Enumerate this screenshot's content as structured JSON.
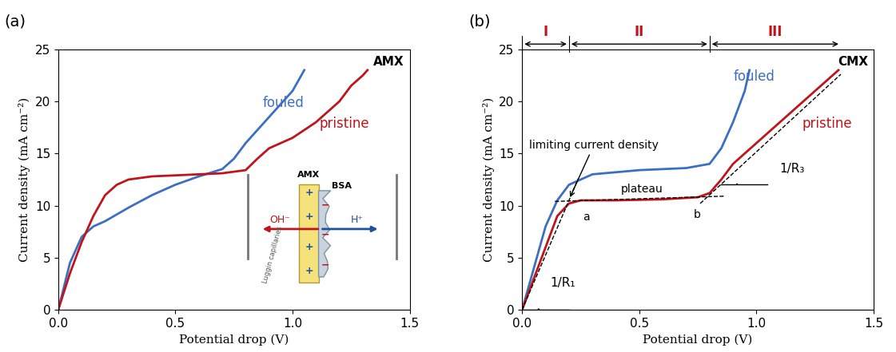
{
  "chart_data": [
    {
      "type": "line",
      "panel": "(a)",
      "title": "AMX",
      "x_label": "Potential drop (V)",
      "y_label": "Current density (mA cm⁻²)",
      "xlim": [
        0,
        1.5
      ],
      "ylim": [
        0,
        25
      ],
      "xticks": [
        {
          "value": 0,
          "label": "0.0"
        },
        {
          "value": 0.5,
          "label": "0.5"
        },
        {
          "value": 1,
          "label": "1.0"
        },
        {
          "value": 1.5,
          "label": "1.5"
        }
      ],
      "yticks": [
        0,
        5,
        10,
        15,
        20,
        25
      ],
      "series": [
        {
          "name": "fouled",
          "color": "#3b6fc4",
          "label_x": 0.96,
          "label_y": 19.5,
          "x": [
            0,
            0.05,
            0.1,
            0.15,
            0.2,
            0.3,
            0.4,
            0.5,
            0.6,
            0.7,
            0.75,
            0.8,
            0.9,
            1.0,
            1.05
          ],
          "values": [
            0,
            4.5,
            7,
            8,
            8.5,
            9.8,
            11,
            12,
            12.8,
            13.5,
            14.5,
            16,
            18.5,
            21,
            23
          ]
        },
        {
          "name": "pristine",
          "color": "#c0141c",
          "label_x": 1.22,
          "label_y": 17.5,
          "x": [
            0,
            0.05,
            0.1,
            0.15,
            0.2,
            0.25,
            0.3,
            0.4,
            0.5,
            0.6,
            0.7,
            0.8,
            0.85,
            0.9,
            1.0,
            1.1,
            1.2,
            1.25,
            1.3,
            1.32
          ],
          "values": [
            0,
            3.5,
            6.5,
            9,
            11,
            12,
            12.5,
            12.8,
            12.9,
            13,
            13.1,
            13.4,
            14.5,
            15.5,
            16.5,
            18,
            20,
            21.5,
            22.5,
            23
          ]
        }
      ],
      "inset": {
        "membrane": "AMX",
        "foulant": "BSA",
        "left_ion": "OH⁻",
        "right_ion": "H⁺",
        "probe": "Luggin capillaries",
        "fixed_charge": "+",
        "foulant_charge": "−"
      }
    },
    {
      "type": "line",
      "panel": "(b)",
      "title": "CMX",
      "x_label": "Potential drop (V)",
      "y_label": "Current density (mA cm⁻²)",
      "xlim": [
        0,
        1.5
      ],
      "ylim": [
        0,
        25
      ],
      "xticks": [
        {
          "value": 0,
          "label": "0.0"
        },
        {
          "value": 0.5,
          "label": "0.5"
        },
        {
          "value": 1,
          "label": "1.0"
        },
        {
          "value": 1.5,
          "label": "1.5"
        }
      ],
      "yticks": [
        0,
        5,
        10,
        15,
        20,
        25
      ],
      "series": [
        {
          "name": "fouled",
          "color": "#3b6fc4",
          "label_x": 0.99,
          "label_y": 22,
          "x": [
            0,
            0.05,
            0.1,
            0.15,
            0.2,
            0.3,
            0.5,
            0.7,
            0.8,
            0.85,
            0.9,
            0.95,
            0.97
          ],
          "values": [
            0,
            4,
            8,
            10.5,
            12,
            13,
            13.4,
            13.6,
            14,
            15.5,
            18,
            21,
            23
          ]
        },
        {
          "name": "pristine",
          "color": "#c0141c",
          "label_x": 1.3,
          "label_y": 17.5,
          "x": [
            0,
            0.05,
            0.1,
            0.15,
            0.2,
            0.25,
            0.4,
            0.6,
            0.75,
            0.8,
            0.85,
            0.9,
            1.0,
            1.1,
            1.2,
            1.3,
            1.35
          ],
          "values": [
            0,
            3,
            6,
            9,
            10.2,
            10.5,
            10.5,
            10.6,
            10.8,
            11.2,
            12.5,
            14,
            16,
            18,
            20,
            22,
            23
          ]
        }
      ],
      "regions": [
        {
          "label": "I",
          "x": [
            0,
            0.2
          ]
        },
        {
          "label": "II",
          "x": [
            0.2,
            0.8
          ]
        },
        {
          "label": "III",
          "x": [
            0.8,
            1.36
          ]
        }
      ],
      "tangent_lines": [
        {
          "x": [
            0,
            0.24
          ],
          "y": [
            0,
            12.6
          ]
        },
        {
          "x": [
            0.14,
            0.86
          ],
          "y": [
            10.4,
            10.9
          ]
        },
        {
          "x": [
            0.76,
            1.36
          ],
          "y": [
            10.2,
            22.6
          ]
        }
      ],
      "angle_labels": [
        {
          "text": "1/R₁",
          "x": 0.12,
          "y": 2.2,
          "line": 0,
          "level": 0
        },
        {
          "text": "1/R₃",
          "x": 1.1,
          "y": 13.2,
          "line": 2,
          "level": 12
        }
      ],
      "annotations": [
        {
          "text": "limiting current density",
          "x": 0.03,
          "y": 15.5,
          "arrow_x": 0.2,
          "arrow_y": 10.6
        },
        {
          "text": "plateau",
          "x": 0.42,
          "y": 11.3
        },
        {
          "text": "a",
          "x": 0.26,
          "y": 8.6
        },
        {
          "text": "b",
          "x": 0.73,
          "y": 8.8
        }
      ]
    }
  ]
}
